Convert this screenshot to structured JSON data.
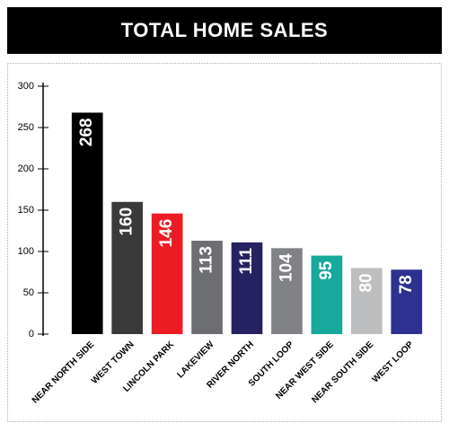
{
  "chart_data": {
    "type": "bar",
    "title": "TOTAL HOME SALES",
    "categories": [
      "NEAR NORTH SIDE",
      "WEST TOWN",
      "LINCOLN PARK",
      "LAKEVIEW",
      "RIVER NORTH",
      "SOUTH LOOP",
      "NEAR WEST SIDE",
      "NEAR SOUTH SIDE",
      "WEST LOOP"
    ],
    "values": [
      268,
      160,
      146,
      113,
      111,
      104,
      95,
      80,
      78
    ],
    "colors": [
      "#000000",
      "#3a3a3c",
      "#ed1c24",
      "#6d6e71",
      "#262262",
      "#808285",
      "#16a99c",
      "#bcbec0",
      "#2e3192"
    ],
    "ylim": [
      0,
      300
    ],
    "yticks": [
      0,
      50,
      100,
      150,
      200,
      250,
      300
    ],
    "grid": false
  }
}
